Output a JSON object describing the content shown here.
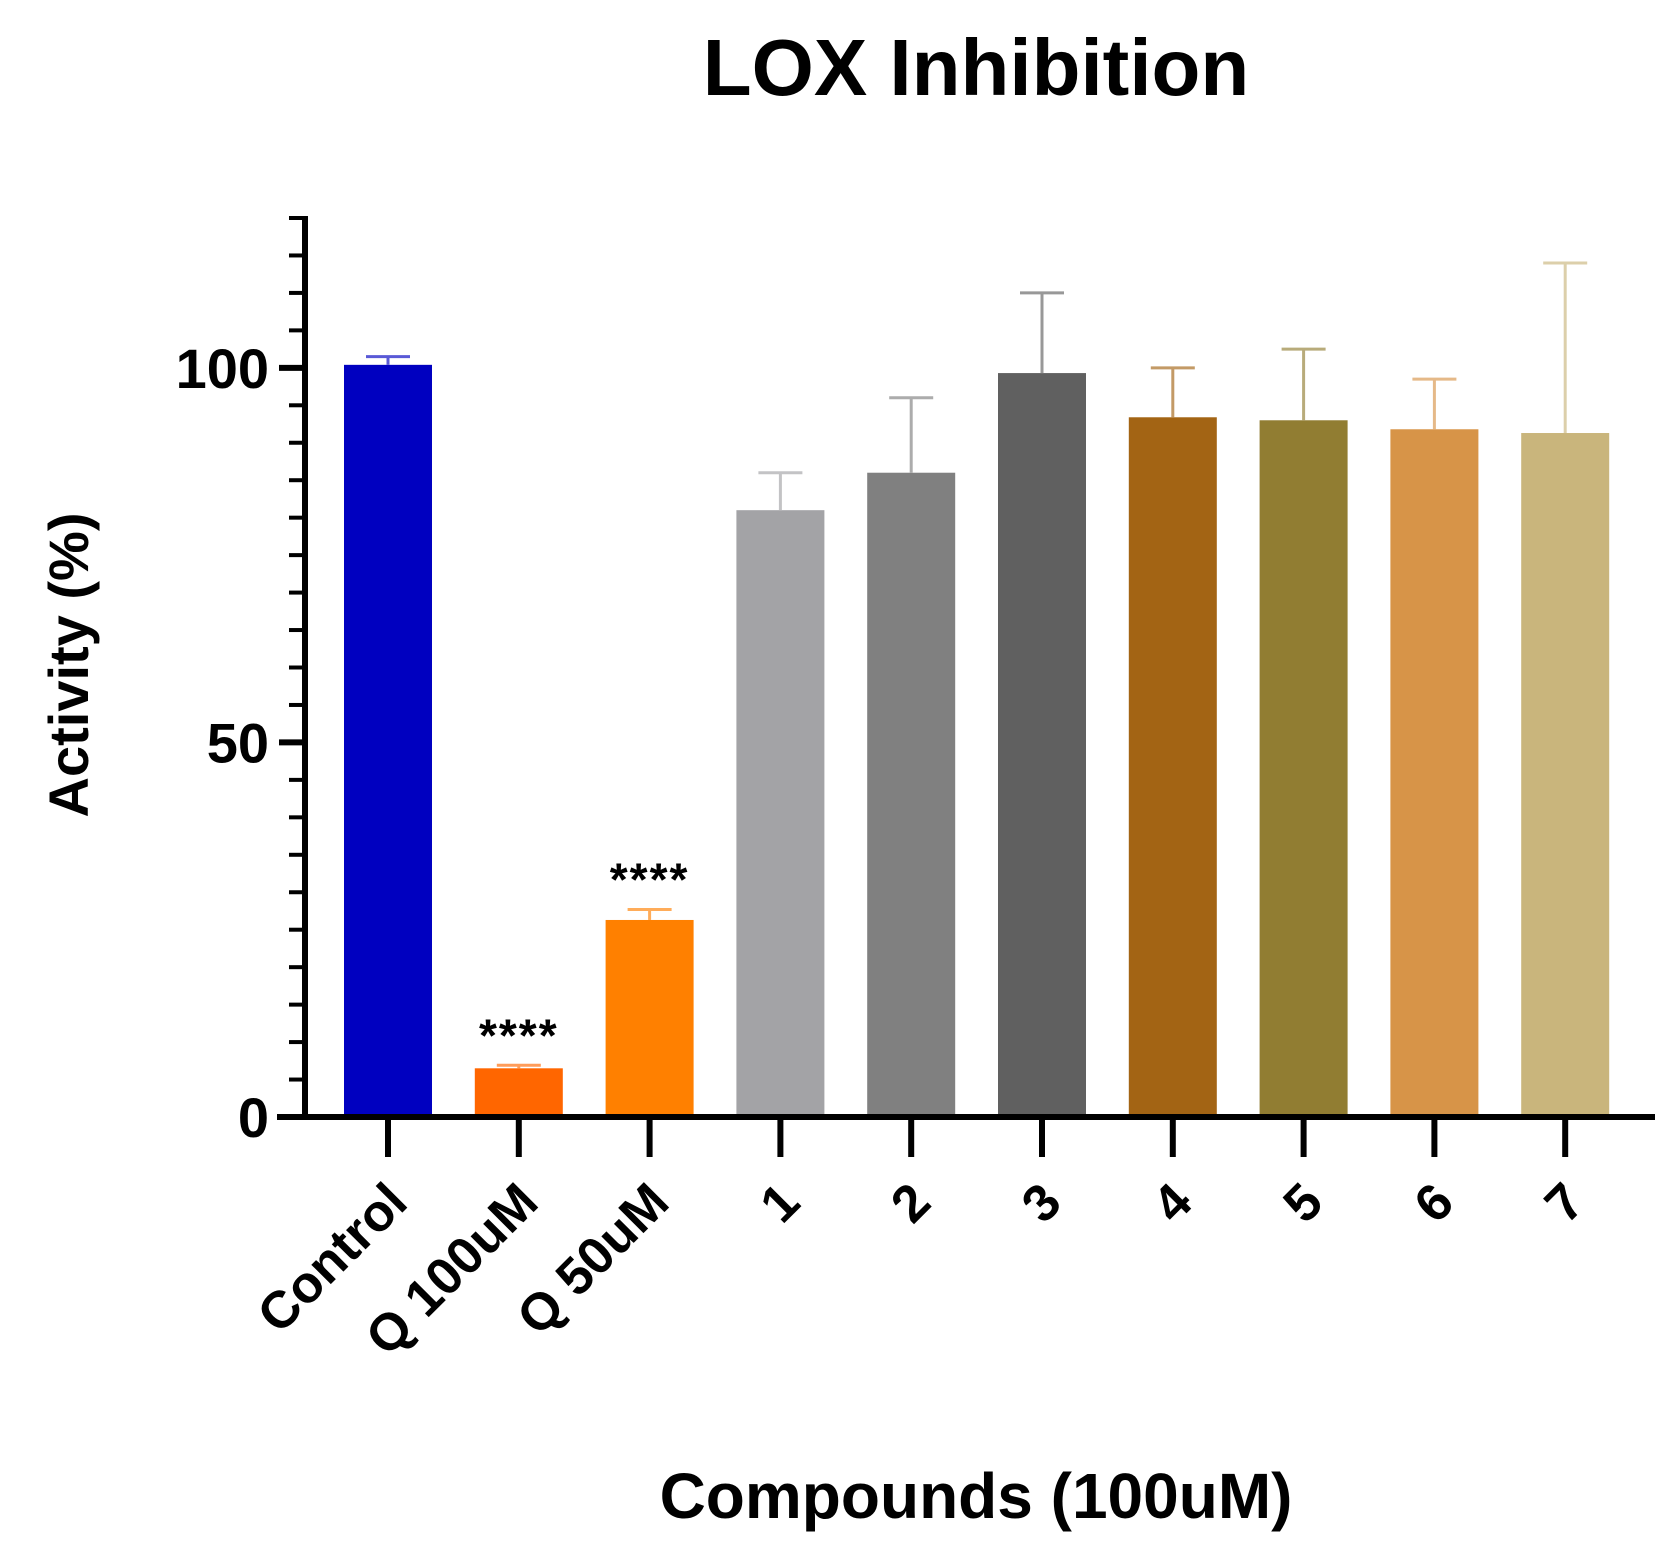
{
  "chart_data": {
    "type": "bar",
    "title": "LOX Inhibition",
    "xlabel": "Compounds (100uM)",
    "ylabel": "Activity (%)",
    "ylim": [
      0,
      120
    ],
    "yticks": [
      0,
      50,
      100
    ],
    "y_minor_tick_step": 5,
    "categories": [
      "Control",
      "Q 100uM",
      "Q 50uM",
      "1",
      "2",
      "3",
      "4",
      "5",
      "6",
      "7"
    ],
    "values": [
      100.4,
      6.5,
      26.3,
      81.0,
      86.0,
      99.3,
      93.4,
      93.0,
      91.8,
      91.3
    ],
    "error_upper": [
      101.5,
      6.9,
      27.7,
      86.0,
      96.0,
      110.0,
      100.0,
      102.5,
      98.5,
      114.0
    ],
    "colors": [
      "#0000C0",
      "#FF6600",
      "#FF8000",
      "#A3A3A6",
      "#808080",
      "#606060",
      "#A36414",
      "#917D32",
      "#D79448",
      "#C9B57C"
    ],
    "annotations": [
      {
        "category": "Q 100uM",
        "text": "****"
      },
      {
        "category": "Q 50uM",
        "text": "****"
      }
    ],
    "grid": false,
    "legend": "none"
  }
}
